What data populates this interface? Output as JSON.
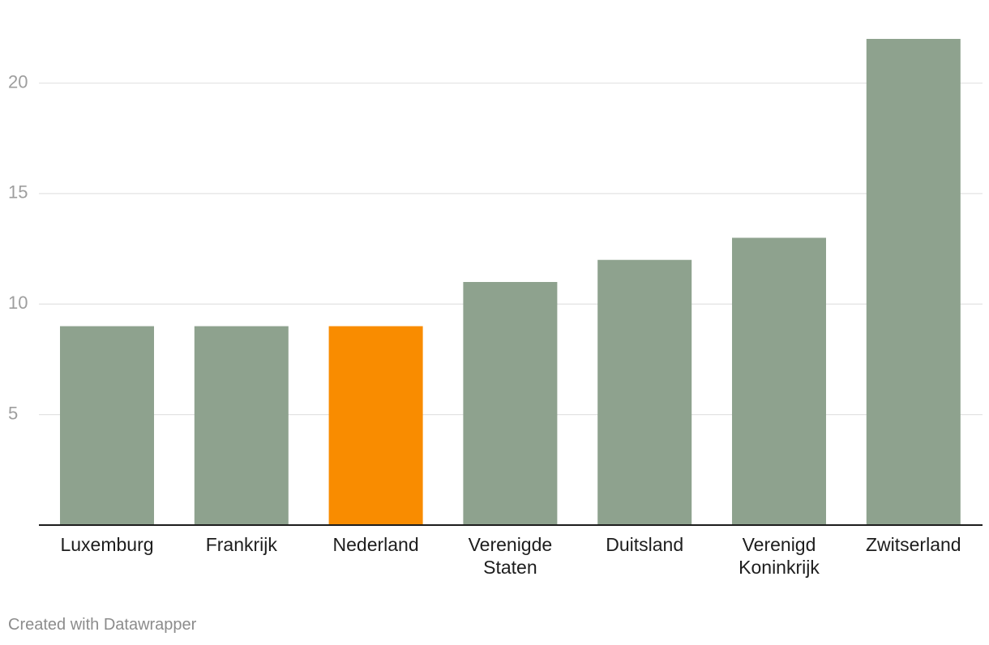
{
  "chart_data": {
    "type": "bar",
    "categories": [
      [
        "Luxemburg"
      ],
      [
        "Frankrijk"
      ],
      [
        "Nederland"
      ],
      [
        "Verenigde",
        "Staten"
      ],
      [
        "Duitsland"
      ],
      [
        "Verenigd",
        "Koninkrijk"
      ],
      [
        "Zwitserland"
      ]
    ],
    "values": [
      9,
      9,
      9,
      11,
      12,
      13,
      22
    ],
    "highlight_index": 2,
    "title": "",
    "xlabel": "",
    "ylabel": "",
    "ylim": [
      0,
      22
    ],
    "yticks": [
      5,
      10,
      15,
      20
    ],
    "grid": true,
    "legend": "none"
  },
  "colors": {
    "bar": "#8ea28e",
    "highlight": "#f98c00",
    "grid": "#e3e3e3",
    "axis": "#1d1d1d"
  },
  "footer": {
    "credit": "Created with Datawrapper"
  }
}
